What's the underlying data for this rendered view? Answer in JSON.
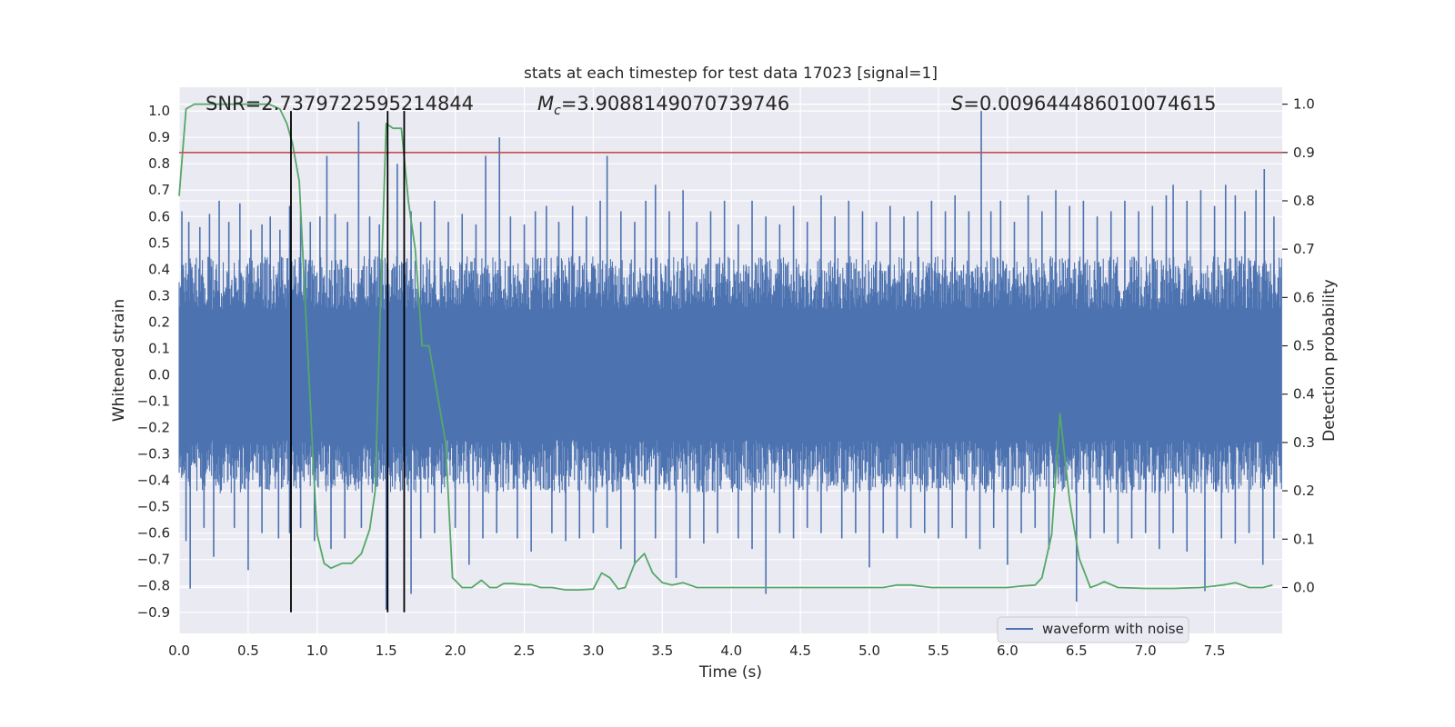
{
  "chart_data": {
    "type": "line",
    "title": "stats at each timestep for test data 17023 [signal=1]",
    "xlabel": "Time (s)",
    "ylabel_left": "Whitened strain",
    "ylabel_right": "Detection probability",
    "xlim": [
      0.0,
      7.99
    ],
    "ylim_left": [
      -0.98,
      1.09
    ],
    "ylim_right": [
      -0.095,
      1.035
    ],
    "x_ticks": [
      0.0,
      0.5,
      1.0,
      1.5,
      2.0,
      2.5,
      3.0,
      3.5,
      4.0,
      4.5,
      5.0,
      5.5,
      6.0,
      6.5,
      7.0,
      7.5
    ],
    "x_tick_labels": [
      "0.0",
      "0.5",
      "1.0",
      "1.5",
      "2.0",
      "2.5",
      "3.0",
      "3.5",
      "4.0",
      "4.5",
      "5.0",
      "5.5",
      "6.0",
      "6.5",
      "7.0",
      "7.5"
    ],
    "y_left_ticks": [
      1.0,
      0.9,
      0.8,
      0.7,
      0.6,
      0.5,
      0.4,
      0.3,
      0.2,
      0.1,
      0.0,
      -0.1,
      -0.2,
      -0.3,
      -0.4,
      -0.5,
      -0.6,
      -0.7,
      -0.8,
      -0.9
    ],
    "y_left_tick_labels": [
      "1.0",
      "0.9",
      "0.8",
      "0.7",
      "0.6",
      "0.5",
      "0.4",
      "0.3",
      "0.2",
      "0.1",
      "0.0",
      "−0.1",
      "−0.2",
      "−0.3",
      "−0.4",
      "−0.5",
      "−0.6",
      "−0.7",
      "−0.8",
      "−0.9"
    ],
    "y_right_ticks": [
      1.0,
      0.9,
      0.8,
      0.7,
      0.6,
      0.5,
      0.4,
      0.3,
      0.2,
      0.1,
      0.0
    ],
    "y_right_tick_labels": [
      "1.0",
      "0.9",
      "0.8",
      "0.7",
      "0.6",
      "0.5",
      "0.4",
      "0.3",
      "0.2",
      "0.1",
      "0.0"
    ],
    "annotations": {
      "snr": "SNR=2.7379722595214844",
      "mc_symbol": "M",
      "mc_subscript": "c",
      "mc_value": "=3.9088149070739746",
      "s_symbol": "S",
      "s_value": "=0.009644486010074615"
    },
    "threshold": {
      "value": 0.9,
      "axis": "right",
      "color": "#c44e52"
    },
    "vertical_lines": {
      "x": [
        0.81,
        1.51,
        1.63
      ],
      "y_range_left": [
        -0.9,
        1.0
      ],
      "color": "#000000"
    },
    "waveform": {
      "name": "waveform with noise",
      "color": "#4c72b0",
      "axis": "left",
      "envelope_upper": 0.45,
      "envelope_lower": -0.45,
      "peaks": [
        [
          0.02,
          0.62
        ],
        [
          0.07,
          0.58
        ],
        [
          0.15,
          0.56
        ],
        [
          0.22,
          0.61
        ],
        [
          0.29,
          0.66
        ],
        [
          0.36,
          0.58
        ],
        [
          0.44,
          0.65
        ],
        [
          0.52,
          0.55
        ],
        [
          0.6,
          0.57
        ],
        [
          0.66,
          0.6
        ],
        [
          0.73,
          0.55
        ],
        [
          0.8,
          0.64
        ],
        [
          0.88,
          0.62
        ],
        [
          0.95,
          0.58
        ],
        [
          1.02,
          0.6
        ],
        [
          1.07,
          0.83
        ],
        [
          1.13,
          0.61
        ],
        [
          1.22,
          0.58
        ],
        [
          1.3,
          0.96
        ],
        [
          1.38,
          0.6
        ],
        [
          1.45,
          0.57
        ],
        [
          1.58,
          0.8
        ],
        [
          1.68,
          0.62
        ],
        [
          1.75,
          0.58
        ],
        [
          1.85,
          0.66
        ],
        [
          1.95,
          0.58
        ],
        [
          2.05,
          0.61
        ],
        [
          2.15,
          0.57
        ],
        [
          2.22,
          0.83
        ],
        [
          2.32,
          0.9
        ],
        [
          2.4,
          0.6
        ],
        [
          2.5,
          0.57
        ],
        [
          2.58,
          0.62
        ],
        [
          2.66,
          0.64
        ],
        [
          2.75,
          0.58
        ],
        [
          2.85,
          0.64
        ],
        [
          2.95,
          0.6
        ],
        [
          3.05,
          0.66
        ],
        [
          3.1,
          0.83
        ],
        [
          3.2,
          0.62
        ],
        [
          3.3,
          0.58
        ],
        [
          3.38,
          0.66
        ],
        [
          3.45,
          0.72
        ],
        [
          3.55,
          0.62
        ],
        [
          3.65,
          0.7
        ],
        [
          3.75,
          0.58
        ],
        [
          3.85,
          0.62
        ],
        [
          3.95,
          0.66
        ],
        [
          4.05,
          0.57
        ],
        [
          4.15,
          0.66
        ],
        [
          4.25,
          0.6
        ],
        [
          4.35,
          0.57
        ],
        [
          4.45,
          0.64
        ],
        [
          4.55,
          0.58
        ],
        [
          4.65,
          0.68
        ],
        [
          4.75,
          0.6
        ],
        [
          4.85,
          0.66
        ],
        [
          4.95,
          0.62
        ],
        [
          5.05,
          0.58
        ],
        [
          5.15,
          0.64
        ],
        [
          5.25,
          0.6
        ],
        [
          5.35,
          0.62
        ],
        [
          5.45,
          0.66
        ],
        [
          5.55,
          0.62
        ],
        [
          5.62,
          0.68
        ],
        [
          5.72,
          0.62
        ],
        [
          5.81,
          1.0
        ],
        [
          5.88,
          0.62
        ],
        [
          5.95,
          0.66
        ],
        [
          6.05,
          0.58
        ],
        [
          6.15,
          0.68
        ],
        [
          6.25,
          0.62
        ],
        [
          6.35,
          0.7
        ],
        [
          6.45,
          0.64
        ],
        [
          6.55,
          0.66
        ],
        [
          6.65,
          0.6
        ],
        [
          6.75,
          0.62
        ],
        [
          6.85,
          0.66
        ],
        [
          6.95,
          0.62
        ],
        [
          7.05,
          0.64
        ],
        [
          7.15,
          0.68
        ],
        [
          7.2,
          0.72
        ],
        [
          7.3,
          0.66
        ],
        [
          7.4,
          0.7
        ],
        [
          7.5,
          0.64
        ],
        [
          7.58,
          0.72
        ],
        [
          7.65,
          0.68
        ],
        [
          7.72,
          0.62
        ],
        [
          7.8,
          0.7
        ],
        [
          7.86,
          0.78
        ],
        [
          7.93,
          0.6
        ]
      ],
      "troughs": [
        [
          0.05,
          -0.63
        ],
        [
          0.08,
          -0.81
        ],
        [
          0.18,
          -0.58
        ],
        [
          0.25,
          -0.69
        ],
        [
          0.4,
          -0.58
        ],
        [
          0.5,
          -0.74
        ],
        [
          0.6,
          -0.6
        ],
        [
          0.72,
          -0.62
        ],
        [
          0.8,
          -0.6
        ],
        [
          0.88,
          -0.58
        ],
        [
          0.98,
          -0.63
        ],
        [
          1.1,
          -0.66
        ],
        [
          1.2,
          -0.62
        ],
        [
          1.32,
          -0.58
        ],
        [
          1.5,
          -0.89
        ],
        [
          1.68,
          -0.83
        ],
        [
          1.75,
          -0.62
        ],
        [
          1.85,
          -0.6
        ],
        [
          2.0,
          -0.58
        ],
        [
          2.1,
          -0.72
        ],
        [
          2.2,
          -0.62
        ],
        [
          2.3,
          -0.6
        ],
        [
          2.45,
          -0.62
        ],
        [
          2.55,
          -0.67
        ],
        [
          2.7,
          -0.6
        ],
        [
          2.8,
          -0.63
        ],
        [
          2.9,
          -0.62
        ],
        [
          3.0,
          -0.6
        ],
        [
          3.1,
          -0.58
        ],
        [
          3.2,
          -0.66
        ],
        [
          3.3,
          -0.72
        ],
        [
          3.45,
          -0.62
        ],
        [
          3.6,
          -0.77
        ],
        [
          3.7,
          -0.62
        ],
        [
          3.8,
          -0.64
        ],
        [
          3.9,
          -0.6
        ],
        [
          4.05,
          -0.62
        ],
        [
          4.15,
          -0.66
        ],
        [
          4.25,
          -0.83
        ],
        [
          4.35,
          -0.6
        ],
        [
          4.45,
          -0.62
        ],
        [
          4.55,
          -0.58
        ],
        [
          4.65,
          -0.6
        ],
        [
          4.8,
          -0.62
        ],
        [
          4.9,
          -0.6
        ],
        [
          5.0,
          -0.73
        ],
        [
          5.1,
          -0.6
        ],
        [
          5.2,
          -0.62
        ],
        [
          5.3,
          -0.58
        ],
        [
          5.4,
          -0.6
        ],
        [
          5.5,
          -0.62
        ],
        [
          5.6,
          -0.58
        ],
        [
          5.7,
          -0.62
        ],
        [
          5.8,
          -0.66
        ],
        [
          5.9,
          -0.58
        ],
        [
          6.0,
          -0.72
        ],
        [
          6.1,
          -0.6
        ],
        [
          6.2,
          -0.58
        ],
        [
          6.3,
          -0.66
        ],
        [
          6.5,
          -0.86
        ],
        [
          6.6,
          -0.62
        ],
        [
          6.7,
          -0.6
        ],
        [
          6.8,
          -0.64
        ],
        [
          6.9,
          -0.62
        ],
        [
          7.0,
          -0.6
        ],
        [
          7.1,
          -0.66
        ],
        [
          7.2,
          -0.6
        ],
        [
          7.3,
          -0.67
        ],
        [
          7.43,
          -0.82
        ],
        [
          7.55,
          -0.62
        ],
        [
          7.65,
          -0.64
        ],
        [
          7.75,
          -0.6
        ],
        [
          7.85,
          -0.72
        ],
        [
          7.93,
          -0.62
        ]
      ]
    },
    "probability": {
      "color": "#55a868",
      "axis": "right",
      "x": [
        0.0,
        0.05,
        0.11,
        0.2,
        0.3,
        0.4,
        0.5,
        0.58,
        0.65,
        0.73,
        0.78,
        0.82,
        0.87,
        0.92,
        0.98,
        1.0,
        1.05,
        1.1,
        1.18,
        1.25,
        1.32,
        1.38,
        1.42,
        1.46,
        1.5,
        1.55,
        1.61,
        1.66,
        1.71,
        1.76,
        1.81,
        1.87,
        1.93,
        1.98,
        2.05,
        2.12,
        2.19,
        2.25,
        2.3,
        2.35,
        2.42,
        2.5,
        2.55,
        2.62,
        2.7,
        2.8,
        2.9,
        3.0,
        3.06,
        3.12,
        3.18,
        3.23,
        3.3,
        3.37,
        3.43,
        3.5,
        3.57,
        3.65,
        3.75,
        3.85,
        3.95,
        4.05,
        4.15,
        4.3,
        4.5,
        4.7,
        4.9,
        5.1,
        5.2,
        5.3,
        5.45,
        5.6,
        5.8,
        6.0,
        6.1,
        6.2,
        6.25,
        6.32,
        6.38,
        6.45,
        6.52,
        6.6,
        6.65,
        6.7,
        6.8,
        7.0,
        7.2,
        7.4,
        7.5,
        7.58,
        7.65,
        7.75,
        7.85,
        7.92
      ],
      "y": [
        0.81,
        0.99,
        1.0,
        1.0,
        1.0,
        1.0,
        1.0,
        1.0,
        1.0,
        0.99,
        0.96,
        0.92,
        0.84,
        0.55,
        0.21,
        0.11,
        0.05,
        0.04,
        0.05,
        0.05,
        0.07,
        0.12,
        0.2,
        0.6,
        0.96,
        0.95,
        0.95,
        0.8,
        0.7,
        0.5,
        0.5,
        0.4,
        0.3,
        0.02,
        0.0,
        0.0,
        0.015,
        0.0,
        0.0,
        0.008,
        0.008,
        0.006,
        0.006,
        0.0,
        0.0,
        -0.005,
        -0.005,
        -0.003,
        0.03,
        0.02,
        -0.003,
        0.0,
        0.05,
        0.07,
        0.03,
        0.01,
        0.005,
        0.01,
        0.0,
        0.0,
        0.0,
        0.0,
        0.0,
        0.0,
        0.0,
        0.0,
        0.0,
        0.0,
        0.005,
        0.005,
        0.0,
        0.0,
        0.0,
        0.0,
        0.003,
        0.005,
        0.02,
        0.11,
        0.36,
        0.18,
        0.06,
        0.0,
        0.005,
        0.012,
        0.0,
        -0.002,
        -0.002,
        0.0,
        0.003,
        0.006,
        0.01,
        0.0,
        0.0,
        0.005
      ]
    },
    "legend": {
      "entries": [
        "waveform with noise"
      ],
      "placement": "lower right"
    },
    "grid": true,
    "style": {
      "background": "#eaeaf2",
      "grid_color": "#ffffff"
    }
  }
}
